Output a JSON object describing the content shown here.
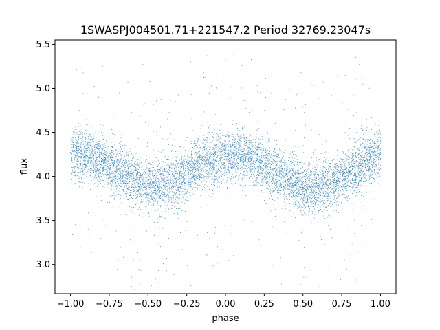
{
  "chart_data": {
    "type": "scatter",
    "title": "1SWASPJ004501.71+221547.2 Period 32769.23047s",
    "xlabel": "phase",
    "ylabel": "flux",
    "xlim": [
      -1.1,
      1.1
    ],
    "ylim": [
      2.67,
      5.55
    ],
    "x_ticks": [
      -1.0,
      -0.75,
      -0.5,
      -0.25,
      0.0,
      0.25,
      0.5,
      0.75,
      1.0
    ],
    "x_tick_labels": [
      "−1.00",
      "−0.75",
      "−0.50",
      "−0.25",
      "0.00",
      "0.25",
      "0.50",
      "0.75",
      "1.00"
    ],
    "y_ticks": [
      3.0,
      3.5,
      4.0,
      4.5,
      5.0,
      5.5
    ],
    "y_tick_labels": [
      "3.0",
      "3.5",
      "4.0",
      "4.5",
      "5.0",
      "5.5"
    ],
    "grid": false,
    "point_color": "#1f77b4",
    "series": [
      {
        "x": [
          -1.0,
          -0.9,
          -0.8,
          -0.7,
          -0.6,
          -0.5,
          -0.4,
          -0.3,
          -0.2,
          -0.1,
          0.0,
          0.1,
          0.2,
          0.3,
          0.4,
          0.5,
          0.6,
          0.7,
          0.8,
          0.9,
          1.0
        ],
        "y": [
          4.27,
          4.24,
          4.17,
          4.07,
          3.97,
          3.9,
          3.9,
          3.98,
          4.1,
          4.2,
          4.26,
          4.25,
          4.18,
          4.08,
          3.96,
          3.87,
          3.86,
          3.93,
          4.05,
          4.18,
          4.27
        ],
        "scatter": 0.15
      }
    ]
  }
}
